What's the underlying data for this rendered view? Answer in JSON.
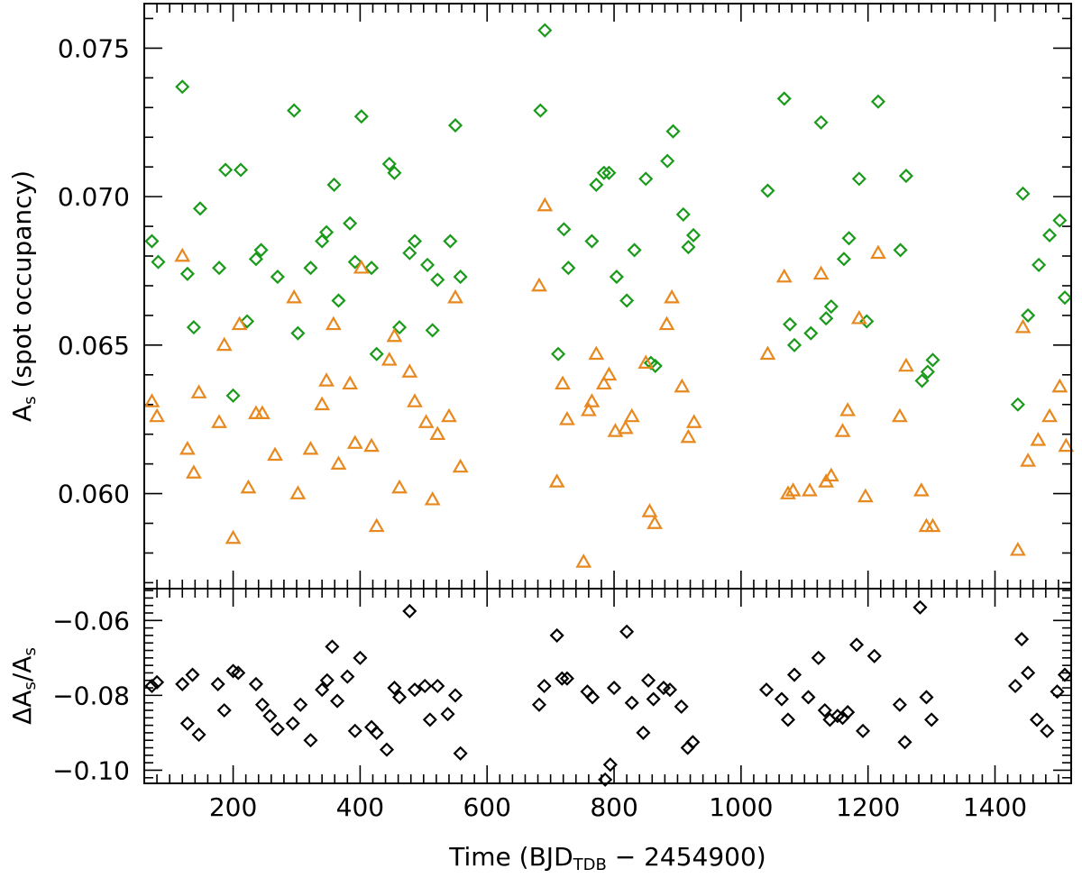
{
  "chart_data": [
    {
      "name": "spot-occupancy",
      "type": "scatter",
      "title": "",
      "ylabel": "A",
      "ylabel_subscript": "s",
      "ylabel_suffix": " (spot occupancy)",
      "xlim": [
        60,
        1520
      ],
      "ylim": [
        0.0568,
        0.0765
      ],
      "yticks": [
        0.06,
        0.065,
        0.07,
        0.075
      ],
      "ytick_labels": [
        "0.060",
        "0.065",
        "0.070",
        "0.075"
      ],
      "yminor_step": 0.001,
      "xticks": [
        200,
        400,
        600,
        800,
        1000,
        1200,
        1400
      ],
      "xminor_step": 20,
      "grid": false,
      "series": [
        {
          "name": "green diamonds",
          "marker": "diamond",
          "color": "#1a9a1a",
          "points": [
            [
              72,
              0.0685
            ],
            [
              82,
              0.0678
            ],
            [
              120,
              0.0737
            ],
            [
              128,
              0.0674
            ],
            [
              138,
              0.0656
            ],
            [
              148,
              0.0696
            ],
            [
              178,
              0.0676
            ],
            [
              188,
              0.0709
            ],
            [
              200,
              0.0633
            ],
            [
              212,
              0.0709
            ],
            [
              222,
              0.0658
            ],
            [
              236,
              0.0679
            ],
            [
              244,
              0.0682
            ],
            [
              270,
              0.0673
            ],
            [
              296,
              0.0729
            ],
            [
              302,
              0.0654
            ],
            [
              322,
              0.0676
            ],
            [
              340,
              0.0685
            ],
            [
              347,
              0.0688
            ],
            [
              359,
              0.0704
            ],
            [
              366,
              0.0665
            ],
            [
              384,
              0.0691
            ],
            [
              392,
              0.0678
            ],
            [
              402,
              0.0727
            ],
            [
              418,
              0.0676
            ],
            [
              426,
              0.0647
            ],
            [
              446,
              0.0711
            ],
            [
              454,
              0.0708
            ],
            [
              462,
              0.0656
            ],
            [
              478,
              0.0681
            ],
            [
              486,
              0.0685
            ],
            [
              506,
              0.0677
            ],
            [
              514,
              0.0655
            ],
            [
              522,
              0.0672
            ],
            [
              542,
              0.0685
            ],
            [
              550,
              0.0724
            ],
            [
              558,
              0.0673
            ],
            [
              684,
              0.0729
            ],
            [
              691,
              0.0756
            ],
            [
              712,
              0.0647
            ],
            [
              721,
              0.0689
            ],
            [
              728,
              0.0676
            ],
            [
              765,
              0.0685
            ],
            [
              772,
              0.0704
            ],
            [
              784,
              0.0708
            ],
            [
              792,
              0.0708
            ],
            [
              804,
              0.0673
            ],
            [
              820,
              0.0665
            ],
            [
              832,
              0.0682
            ],
            [
              850,
              0.0706
            ],
            [
              858,
              0.0644
            ],
            [
              865,
              0.0643
            ],
            [
              884,
              0.0712
            ],
            [
              893,
              0.0722
            ],
            [
              909,
              0.0694
            ],
            [
              917,
              0.0683
            ],
            [
              925,
              0.0687
            ],
            [
              1042,
              0.0702
            ],
            [
              1068,
              0.0733
            ],
            [
              1077,
              0.0657
            ],
            [
              1084,
              0.065
            ],
            [
              1110,
              0.0654
            ],
            [
              1126,
              0.0725
            ],
            [
              1134,
              0.0659
            ],
            [
              1142,
              0.0663
            ],
            [
              1162,
              0.0679
            ],
            [
              1170,
              0.0686
            ],
            [
              1186,
              0.0706
            ],
            [
              1198,
              0.0658
            ],
            [
              1216,
              0.0732
            ],
            [
              1251,
              0.0682
            ],
            [
              1260,
              0.0707
            ],
            [
              1285,
              0.0638
            ],
            [
              1294,
              0.0641
            ],
            [
              1302,
              0.0645
            ],
            [
              1436,
              0.063
            ],
            [
              1444,
              0.0701
            ],
            [
              1452,
              0.066
            ],
            [
              1469,
              0.0677
            ],
            [
              1486,
              0.0687
            ],
            [
              1502,
              0.0692
            ],
            [
              1510,
              0.0666
            ]
          ]
        },
        {
          "name": "orange triangles",
          "marker": "triangle",
          "color": "#e8891f",
          "points": [
            [
              72,
              0.0631
            ],
            [
              80,
              0.0626
            ],
            [
              120,
              0.068
            ],
            [
              128,
              0.0615
            ],
            [
              138,
              0.0607
            ],
            [
              146,
              0.0634
            ],
            [
              178,
              0.0624
            ],
            [
              186,
              0.065
            ],
            [
              200,
              0.0585
            ],
            [
              210,
              0.0657
            ],
            [
              224,
              0.0602
            ],
            [
              236,
              0.0627
            ],
            [
              246,
              0.0627
            ],
            [
              266,
              0.0613
            ],
            [
              296,
              0.0666
            ],
            [
              302,
              0.06
            ],
            [
              322,
              0.0615
            ],
            [
              340,
              0.063
            ],
            [
              347,
              0.0638
            ],
            [
              358,
              0.0657
            ],
            [
              366,
              0.061
            ],
            [
              384,
              0.0637
            ],
            [
              392,
              0.0617
            ],
            [
              402,
              0.0676
            ],
            [
              418,
              0.0616
            ],
            [
              426,
              0.0589
            ],
            [
              446,
              0.0645
            ],
            [
              454,
              0.0653
            ],
            [
              462,
              0.0602
            ],
            [
              478,
              0.0641
            ],
            [
              486,
              0.0631
            ],
            [
              504,
              0.0624
            ],
            [
              514,
              0.0598
            ],
            [
              522,
              0.062
            ],
            [
              540,
              0.0626
            ],
            [
              550,
              0.0666
            ],
            [
              558,
              0.0609
            ],
            [
              682,
              0.067
            ],
            [
              691,
              0.0697
            ],
            [
              710,
              0.0604
            ],
            [
              719,
              0.0637
            ],
            [
              726,
              0.0625
            ],
            [
              752,
              0.0577
            ],
            [
              760,
              0.0628
            ],
            [
              765,
              0.0631
            ],
            [
              772,
              0.0647
            ],
            [
              784,
              0.0637
            ],
            [
              792,
              0.064
            ],
            [
              802,
              0.0621
            ],
            [
              818,
              0.0622
            ],
            [
              828,
              0.0626
            ],
            [
              850,
              0.0644
            ],
            [
              856,
              0.0594
            ],
            [
              864,
              0.059
            ],
            [
              883,
              0.0657
            ],
            [
              891,
              0.0666
            ],
            [
              907,
              0.0636
            ],
            [
              917,
              0.0619
            ],
            [
              926,
              0.0624
            ],
            [
              1042,
              0.0647
            ],
            [
              1068,
              0.0673
            ],
            [
              1074,
              0.06
            ],
            [
              1082,
              0.0601
            ],
            [
              1108,
              0.0601
            ],
            [
              1126,
              0.0674
            ],
            [
              1134,
              0.0604
            ],
            [
              1142,
              0.0606
            ],
            [
              1160,
              0.0621
            ],
            [
              1168,
              0.0628
            ],
            [
              1186,
              0.0659
            ],
            [
              1196,
              0.0599
            ],
            [
              1216,
              0.0681
            ],
            [
              1250,
              0.0626
            ],
            [
              1260,
              0.0643
            ],
            [
              1284,
              0.0601
            ],
            [
              1292,
              0.0589
            ],
            [
              1302,
              0.0589
            ],
            [
              1436,
              0.0581
            ],
            [
              1444,
              0.0656
            ],
            [
              1452,
              0.0611
            ],
            [
              1468,
              0.0618
            ],
            [
              1486,
              0.0626
            ],
            [
              1502,
              0.0636
            ],
            [
              1512,
              0.0616
            ]
          ]
        }
      ]
    },
    {
      "name": "relative-change",
      "type": "scatter",
      "title": "",
      "ylabel": "ΔA",
      "ylabel_subscript": "s",
      "ylabel_suffix": "/A",
      "ylabel_suffix_subscript": "s",
      "xlabel": "Time (BJD",
      "xlabel_subscript": "TDB",
      "xlabel_suffix": " − 2454900)",
      "xlim": [
        60,
        1520
      ],
      "ylim": [
        -0.1035,
        -0.0515
      ],
      "yticks": [
        -0.1,
        -0.08,
        -0.06
      ],
      "ytick_labels": [
        "−0.10",
        "−0.08",
        "−0.06"
      ],
      "yminor_step": 0.002,
      "xticks": [
        200,
        400,
        600,
        800,
        1000,
        1200,
        1400
      ],
      "xtick_labels": [
        "200",
        "400",
        "600",
        "800",
        "1000",
        "1200",
        "1400"
      ],
      "xminor_step": 20,
      "grid": false,
      "series": [
        {
          "name": "black diamonds",
          "marker": "diamond",
          "color": "#000000",
          "points": [
            [
              72,
              -0.0775
            ],
            [
              80,
              -0.0765
            ],
            [
              120,
              -0.077
            ],
            [
              128,
              -0.0875
            ],
            [
              136,
              -0.0745
            ],
            [
              146,
              -0.0905
            ],
            [
              176,
              -0.077
            ],
            [
              186,
              -0.084
            ],
            [
              200,
              -0.0735
            ],
            [
              208,
              -0.074
            ],
            [
              236,
              -0.077
            ],
            [
              246,
              -0.0825
            ],
            [
              258,
              -0.0855
            ],
            [
              270,
              -0.089
            ],
            [
              294,
              -0.0875
            ],
            [
              306,
              -0.0825
            ],
            [
              322,
              -0.092
            ],
            [
              340,
              -0.0785
            ],
            [
              348,
              -0.076
            ],
            [
              356,
              -0.067
            ],
            [
              364,
              -0.0815
            ],
            [
              380,
              -0.075
            ],
            [
              392,
              -0.0895
            ],
            [
              400,
              -0.07
            ],
            [
              418,
              -0.0885
            ],
            [
              426,
              -0.09
            ],
            [
              442,
              -0.0945
            ],
            [
              454,
              -0.078
            ],
            [
              462,
              -0.0805
            ],
            [
              478,
              -0.0575
            ],
            [
              486,
              -0.0785
            ],
            [
              502,
              -0.0775
            ],
            [
              510,
              -0.0865
            ],
            [
              522,
              -0.0775
            ],
            [
              538,
              -0.085
            ],
            [
              550,
              -0.08
            ],
            [
              558,
              -0.0955
            ],
            [
              682,
              -0.0825
            ],
            [
              690,
              -0.0775
            ],
            [
              710,
              -0.064
            ],
            [
              718,
              -0.0755
            ],
            [
              726,
              -0.0755
            ],
            [
              758,
              -0.079
            ],
            [
              766,
              -0.0805
            ],
            [
              786,
              -0.1025
            ],
            [
              794,
              -0.0985
            ],
            [
              800,
              -0.078
            ],
            [
              820,
              -0.063
            ],
            [
              828,
              -0.082
            ],
            [
              846,
              -0.09
            ],
            [
              854,
              -0.076
            ],
            [
              862,
              -0.081
            ],
            [
              878,
              -0.078
            ],
            [
              888,
              -0.0785
            ],
            [
              906,
              -0.083
            ],
            [
              916,
              -0.094
            ],
            [
              924,
              -0.0925
            ],
            [
              1040,
              -0.0785
            ],
            [
              1064,
              -0.081
            ],
            [
              1074,
              -0.0865
            ],
            [
              1084,
              -0.0745
            ],
            [
              1106,
              -0.0805
            ],
            [
              1122,
              -0.07
            ],
            [
              1132,
              -0.084
            ],
            [
              1140,
              -0.0865
            ],
            [
              1152,
              -0.0855
            ],
            [
              1160,
              -0.086
            ],
            [
              1168,
              -0.0845
            ],
            [
              1182,
              -0.0665
            ],
            [
              1192,
              -0.0895
            ],
            [
              1210,
              -0.0695
            ],
            [
              1250,
              -0.0825
            ],
            [
              1258,
              -0.0925
            ],
            [
              1282,
              -0.0565
            ],
            [
              1292,
              -0.0805
            ],
            [
              1300,
              -0.0865
            ],
            [
              1432,
              -0.0775
            ],
            [
              1442,
              -0.065
            ],
            [
              1452,
              -0.074
            ],
            [
              1466,
              -0.0865
            ],
            [
              1482,
              -0.0895
            ],
            [
              1498,
              -0.079
            ],
            [
              1510,
              -0.0745
            ]
          ]
        }
      ]
    }
  ]
}
